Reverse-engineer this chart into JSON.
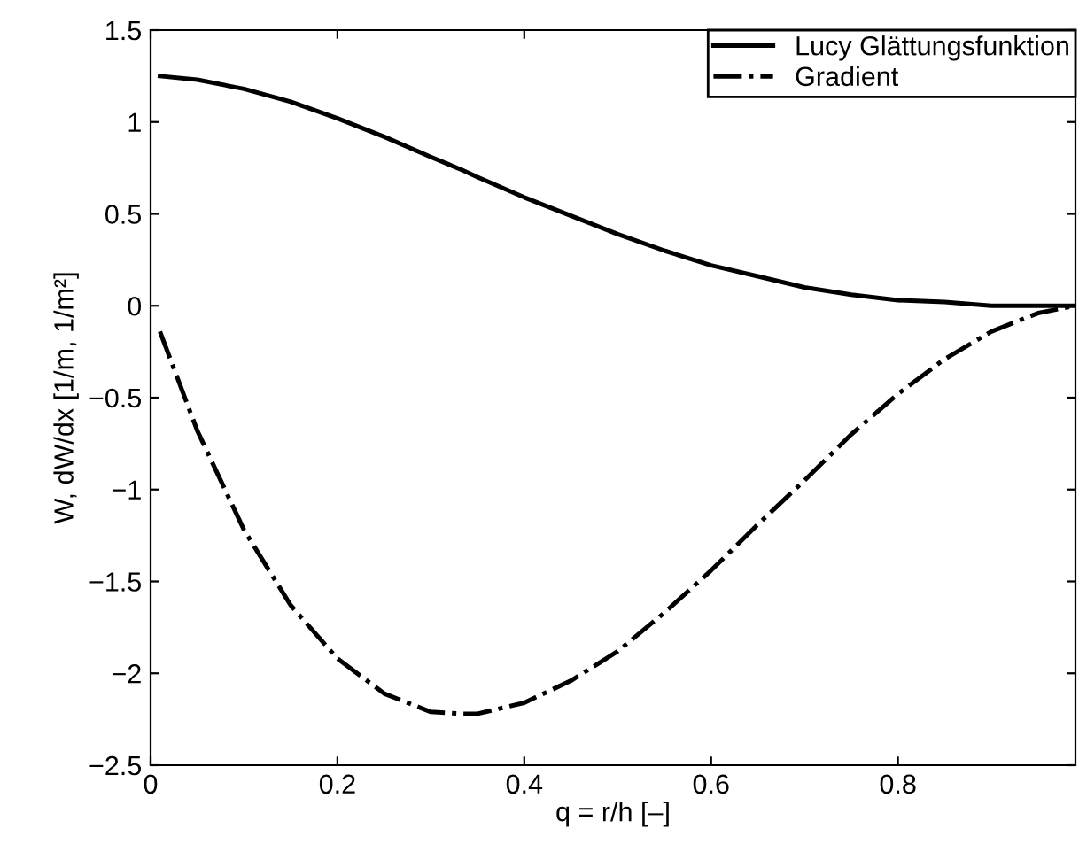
{
  "chart_data": {
    "type": "line",
    "xlabel": "q = r/h [–]",
    "ylabel": "W, dW/dx [1/m, 1/m²]",
    "x": [
      0.01,
      0.05,
      0.1,
      0.15,
      0.2,
      0.25,
      0.3,
      0.333,
      0.35,
      0.4,
      0.45,
      0.5,
      0.55,
      0.6,
      0.65,
      0.7,
      0.75,
      0.8,
      0.85,
      0.9,
      0.95,
      0.99
    ],
    "series": [
      {
        "name": "Lucy Glättungsfunktion",
        "color": "#000000",
        "line_style": "solid",
        "values": [
          1.25,
          1.23,
          1.18,
          1.11,
          1.02,
          0.92,
          0.81,
          0.74,
          0.7,
          0.59,
          0.49,
          0.39,
          0.3,
          0.22,
          0.16,
          0.1,
          0.06,
          0.03,
          0.02,
          0.0,
          0.0,
          0.0
        ]
      },
      {
        "name": "Gradient",
        "color": "#000000",
        "line_style": "dashdot",
        "values": [
          -0.14,
          -0.68,
          -1.22,
          -1.63,
          -1.92,
          -2.11,
          -2.21,
          -2.22,
          -2.22,
          -2.16,
          -2.04,
          -1.88,
          -1.67,
          -1.44,
          -1.19,
          -0.95,
          -0.7,
          -0.48,
          -0.29,
          -0.14,
          -0.04,
          0.0
        ]
      }
    ],
    "xlim": [
      0,
      0.99
    ],
    "xticks": [
      0,
      0.2,
      0.4,
      0.6,
      0.8
    ],
    "ylim": [
      -2.5,
      1.5
    ],
    "yticks": [
      -2.5,
      -2,
      -1.5,
      -1,
      -0.5,
      0,
      0.5,
      1,
      1.5
    ],
    "grid": false,
    "legend": "top right",
    "marker": "none"
  }
}
